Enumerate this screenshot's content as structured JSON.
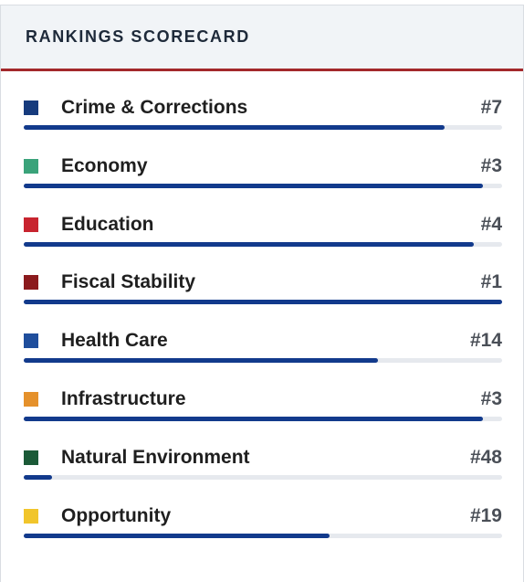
{
  "header": {
    "title": "RANKINGS SCORECARD"
  },
  "colors": {
    "header_rule": "#a3282b",
    "bar_fill": "#123a8c",
    "bar_track": "#e6e9ee"
  },
  "rows": [
    {
      "label": "Crime & Corrections",
      "rank": "#7",
      "color": "#163b7d",
      "icon": "crime-corrections-square-icon",
      "fill_pct": 88
    },
    {
      "label": "Economy",
      "rank": "#3",
      "color": "#3aa37a",
      "icon": "economy-square-icon",
      "fill_pct": 96
    },
    {
      "label": "Education",
      "rank": "#4",
      "color": "#c8242f",
      "icon": "education-square-icon",
      "fill_pct": 94
    },
    {
      "label": "Fiscal Stability",
      "rank": "#1",
      "color": "#8b1a1d",
      "icon": "fiscal-stability-square-icon",
      "fill_pct": 100
    },
    {
      "label": "Health Care",
      "rank": "#14",
      "color": "#1f4e9c",
      "icon": "health-care-square-icon",
      "fill_pct": 74
    },
    {
      "label": "Infrastructure",
      "rank": "#3",
      "color": "#e5912b",
      "icon": "infrastructure-square-icon",
      "fill_pct": 96
    },
    {
      "label": "Natural Environment",
      "rank": "#48",
      "color": "#1b5a37",
      "icon": "natural-environment-square-icon",
      "fill_pct": 6
    },
    {
      "label": "Opportunity",
      "rank": "#19",
      "color": "#f1c52b",
      "icon": "opportunity-square-icon",
      "fill_pct": 64
    }
  ]
}
